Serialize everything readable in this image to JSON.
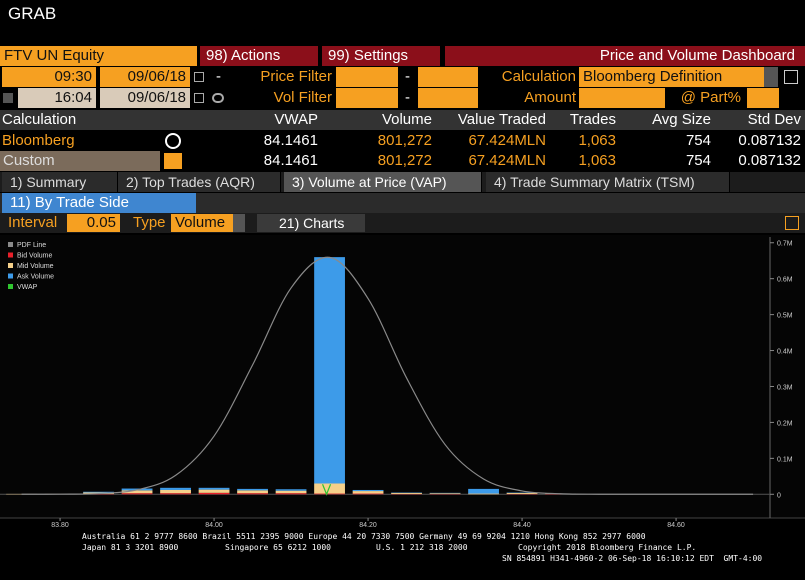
{
  "header": {
    "title": "GRAB"
  },
  "toolbar": {
    "security": "FTV UN Equity",
    "actions": "98) Actions",
    "settings": "99) Settings",
    "dashboard": "Price and Volume Dashboard"
  },
  "filters": {
    "start_time": "09:30",
    "start_date": "09/06/18",
    "end_time": "16:04",
    "end_date": "09/06/18",
    "separator": "-",
    "price_filter": "Price Filter",
    "vol_filter": "Vol Filter",
    "calculation_label": "Calculation",
    "calculation": "Bloomberg Definition",
    "amount": "Amount",
    "participation": "@ Part%"
  },
  "table": {
    "headers": [
      "Calculation",
      "VWAP",
      "Volume",
      "Value Traded",
      "Trades",
      "Avg Size",
      "Std Dev"
    ],
    "rows": [
      [
        "Bloomberg",
        "84.1461",
        "801,272",
        "67.424MLN",
        "1,063",
        "754",
        "0.087132"
      ],
      [
        "Custom",
        "84.1461",
        "801,272",
        "67.424MLN",
        "1,063",
        "754",
        "0.087132"
      ]
    ]
  },
  "tabs": [
    "1) Summary",
    "2) Top Trades (AQR)",
    "3) Volume at Price (VAP)",
    "4) Trade Summary Matrix (TSM)"
  ],
  "side_button": "11) By Trade Side",
  "controls": {
    "interval_label": "Interval",
    "interval": "0.05",
    "type_label": "Type",
    "type": "Volume",
    "charts": "21) Charts"
  },
  "chart_data": {
    "type": "bar",
    "stacked": true,
    "x": [
      83.75,
      83.8,
      83.85,
      83.9,
      83.95,
      84.0,
      84.05,
      84.1,
      84.15,
      84.2,
      84.25,
      84.3,
      84.35,
      84.4,
      84.45,
      84.5,
      84.55,
      84.6,
      84.65,
      84.7
    ],
    "series": [
      {
        "name": "PDF Line",
        "type": "line",
        "color": "#8a8a8a",
        "values": [
          21,
          250,
          2060,
          12260,
          52600,
          162100,
          359700,
          574300,
          659300,
          544800,
          323700,
          138400,
          42600,
          9400,
          1500,
          170,
          20,
          0,
          0,
          0
        ]
      },
      {
        "name": "Bid Volume",
        "color": "#e8202a",
        "values": [
          0,
          0,
          1000,
          3000,
          3000,
          4000,
          3000,
          3000,
          2000,
          2000,
          1000,
          1000,
          0,
          1000,
          1000,
          0,
          0,
          0,
          0,
          0
        ]
      },
      {
        "name": "Mid Volume",
        "color": "#f5d08a",
        "values": [
          1000,
          1000,
          4000,
          8000,
          9000,
          9000,
          8000,
          7000,
          28000,
          7000,
          3000,
          2000,
          2000,
          3000,
          1000,
          0,
          0,
          0,
          0,
          0
        ]
      },
      {
        "name": "Ask Volume",
        "color": "#3d9be9",
        "values": [
          0,
          0,
          2000,
          5000,
          6000,
          5000,
          4000,
          4000,
          630000,
          3000,
          1000,
          1000,
          13000,
          1000,
          0,
          0,
          0,
          0,
          0,
          0
        ]
      }
    ],
    "vwap": {
      "name": "VWAP",
      "color": "#2fc52f",
      "value": 84.1461
    },
    "xlim": [
      83.722,
      84.722
    ],
    "xticks": [
      {
        "value": 83.8,
        "label": "83.80"
      },
      {
        "value": 84.0,
        "label": "84.00"
      },
      {
        "value": 84.2,
        "label": "84.20"
      },
      {
        "value": 84.4,
        "label": "84.40"
      },
      {
        "value": 84.6,
        "label": "84.60"
      }
    ],
    "ylim": [
      -66000,
      716000
    ],
    "yticks": [
      0,
      {
        "value": 100000,
        "label": "0.1M"
      },
      {
        "value": 200000,
        "label": "0.2M"
      },
      {
        "value": 300000,
        "label": "0.3M"
      },
      {
        "value": 400000,
        "label": "0.4M"
      },
      {
        "value": 500000,
        "label": "0.5M"
      },
      {
        "value": 600000,
        "label": "0.6M"
      },
      {
        "value": 700000,
        "label": "0.7M"
      }
    ],
    "grid": false
  },
  "footer": {
    "contacts": "Australia 61 2 9777 8600 Brazil 5511 2395 9000 Europe 44 20 7330 7500 Germany 49 69 9204 1210 Hong Kong 852 2977 6000",
    "offices": [
      "Japan 81 3 3201 8900",
      "Singapore 65 6212 1000",
      "U.S. 1 212 318 2000"
    ],
    "copyright": "Copyright 2018 Bloomberg Finance L.P.",
    "session": "SN 854891 H341-4960-2 06-Sep-18 16:10:12 EDT  GMT-4:00"
  }
}
